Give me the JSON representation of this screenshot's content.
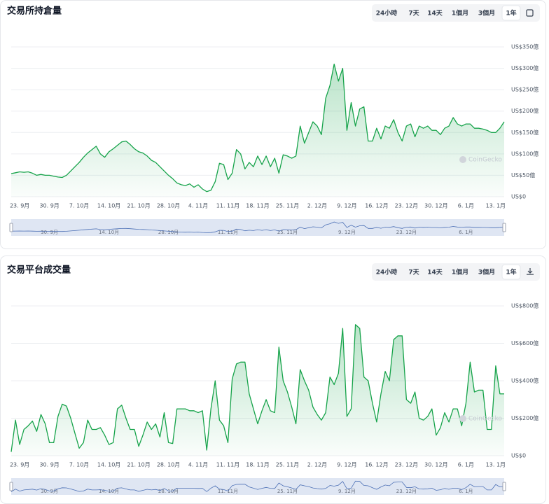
{
  "chart_data": [
    {
      "type": "line",
      "area": true,
      "title": "交易所持倉量",
      "color": "#16a34a",
      "grid": true,
      "watermark": "CoinGecko",
      "range_buttons": [
        "24小時",
        "7天",
        "14天",
        "1個月",
        "3個月",
        "1年"
      ],
      "categories": [
        null,
        null,
        "23. 9月",
        null,
        null,
        null,
        null,
        null,
        null,
        "30. 9月",
        null,
        null,
        null,
        null,
        null,
        null,
        "7. 10月",
        null,
        null,
        null,
        null,
        null,
        null,
        "14. 10月",
        null,
        null,
        null,
        null,
        null,
        null,
        "21. 10月",
        null,
        null,
        null,
        null,
        null,
        null,
        "28. 10月",
        null,
        null,
        null,
        null,
        null,
        null,
        "4. 11月",
        null,
        null,
        null,
        null,
        null,
        null,
        "11. 11月",
        null,
        null,
        null,
        null,
        null,
        null,
        "18. 11月",
        null,
        null,
        null,
        null,
        null,
        null,
        "25. 11月",
        null,
        null,
        null,
        null,
        null,
        null,
        "2. 12月",
        null,
        null,
        null,
        null,
        null,
        null,
        "9. 12月",
        null,
        null,
        null,
        null,
        null,
        null,
        "16. 12月",
        null,
        null,
        null,
        null,
        null,
        null,
        "23. 12月",
        null,
        null,
        null,
        null,
        null,
        null,
        "30. 12月",
        null,
        null,
        null,
        null,
        null,
        null,
        "6. 1月",
        null,
        null,
        null,
        null,
        null,
        null,
        "13. 1月",
        null,
        null
      ],
      "values": [
        54,
        56,
        58,
        57,
        58,
        55,
        50,
        52,
        50,
        50,
        48,
        46,
        45,
        50,
        60,
        70,
        80,
        92,
        102,
        110,
        118,
        100,
        92,
        105,
        112,
        120,
        128,
        130,
        122,
        112,
        105,
        102,
        95,
        85,
        80,
        70,
        60,
        50,
        42,
        32,
        28,
        26,
        30,
        22,
        28,
        18,
        12,
        15,
        35,
        78,
        75,
        40,
        55,
        110,
        100,
        65,
        80,
        70,
        95,
        75,
        95,
        70,
        90,
        55,
        98,
        95,
        90,
        95,
        165,
        125,
        150,
        175,
        165,
        145,
        230,
        260,
        310,
        270,
        300,
        155,
        220,
        165,
        205,
        210,
        130,
        130,
        160,
        135,
        165,
        160,
        180,
        150,
        130,
        165,
        170,
        140,
        165,
        160,
        165,
        155,
        155,
        145,
        160,
        165,
        185,
        170,
        165,
        170,
        170,
        160,
        160,
        158,
        155,
        150,
        150,
        160,
        175
      ],
      "ylim": [
        0,
        350
      ],
      "yticks": [
        {
          "value": 0,
          "label": "US$0"
        },
        {
          "value": 50,
          "label": "US$50億"
        },
        {
          "value": 100,
          "label": "US$100億"
        },
        {
          "value": 150,
          "label": "US$150億"
        },
        {
          "value": 200,
          "label": "US$200億"
        },
        {
          "value": 250,
          "label": "US$250億"
        },
        {
          "value": 300,
          "label": "US$300億"
        },
        {
          "value": 350,
          "label": "US$350億"
        }
      ]
    },
    {
      "type": "line",
      "area": true,
      "title": "交易平台成交量",
      "color": "#16a34a",
      "grid": true,
      "watermark": "CoinGecko",
      "range_buttons": [
        "24小時",
        "7天",
        "14天",
        "1個月",
        "3個月",
        "1年"
      ],
      "categories": [
        null,
        null,
        "23. 9月",
        null,
        null,
        null,
        null,
        null,
        null,
        "30. 9月",
        null,
        null,
        null,
        null,
        null,
        null,
        "7. 10月",
        null,
        null,
        null,
        null,
        null,
        null,
        "14. 10月",
        null,
        null,
        null,
        null,
        null,
        null,
        "21. 10月",
        null,
        null,
        null,
        null,
        null,
        null,
        "28. 10月",
        null,
        null,
        null,
        null,
        null,
        null,
        "4. 11月",
        null,
        null,
        null,
        null,
        null,
        null,
        "11. 11月",
        null,
        null,
        null,
        null,
        null,
        null,
        "18. 11月",
        null,
        null,
        null,
        null,
        null,
        null,
        "25. 11月",
        null,
        null,
        null,
        null,
        null,
        null,
        "2. 12月",
        null,
        null,
        null,
        null,
        null,
        null,
        "9. 12月",
        null,
        null,
        null,
        null,
        null,
        null,
        "16. 12月",
        null,
        null,
        null,
        null,
        null,
        null,
        "23. 12月",
        null,
        null,
        null,
        null,
        null,
        null,
        "30. 12月",
        null,
        null,
        null,
        null,
        null,
        null,
        "6. 1月",
        null,
        null,
        null,
        null,
        null,
        null,
        "13. 1月",
        null,
        null
      ],
      "values": [
        20,
        190,
        60,
        140,
        160,
        185,
        130,
        220,
        170,
        70,
        70,
        210,
        275,
        265,
        200,
        120,
        40,
        70,
        190,
        140,
        140,
        150,
        110,
        60,
        70,
        250,
        270,
        200,
        140,
        140,
        50,
        110,
        180,
        140,
        170,
        100,
        230,
        70,
        65,
        250,
        250,
        250,
        240,
        240,
        230,
        240,
        30,
        250,
        400,
        190,
        160,
        70,
        410,
        490,
        500,
        500,
        330,
        250,
        170,
        240,
        300,
        240,
        230,
        580,
        400,
        340,
        260,
        170,
        460,
        400,
        350,
        260,
        220,
        190,
        230,
        420,
        380,
        440,
        680,
        210,
        250,
        700,
        680,
        420,
        400,
        280,
        180,
        330,
        450,
        400,
        620,
        640,
        640,
        300,
        280,
        340,
        200,
        190,
        210,
        250,
        110,
        150,
        230,
        180,
        250,
        250,
        160,
        280,
        500,
        340,
        350,
        350,
        140,
        140,
        480,
        330,
        330
      ],
      "ylim": [
        0,
        800
      ],
      "yticks": [
        {
          "value": 0,
          "label": "US$0"
        },
        {
          "value": 200,
          "label": "US$200億"
        },
        {
          "value": 400,
          "label": "US$400億"
        },
        {
          "value": 600,
          "label": "US$600億"
        },
        {
          "value": 800,
          "label": "US$800億"
        }
      ]
    }
  ]
}
